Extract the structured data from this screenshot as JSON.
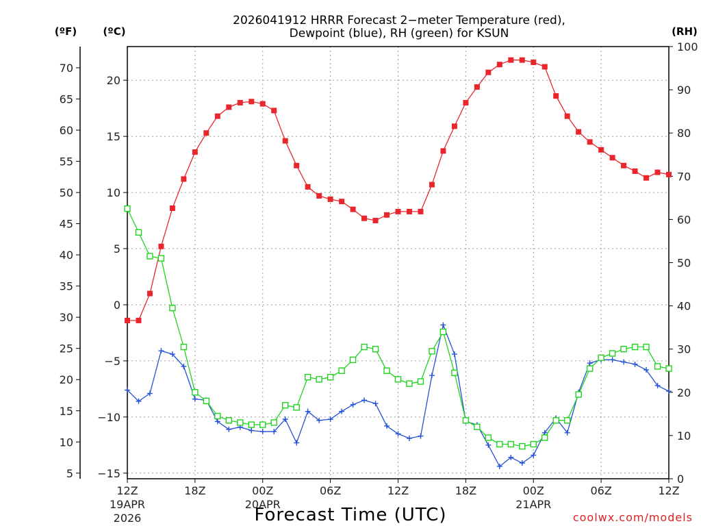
{
  "chart_data": {
    "type": "line",
    "title_line1": "2026041912 HRRR Forecast 2−meter Temperature (red),",
    "title_line2": "Dewpoint (blue), RH (green) for KSUN",
    "xlabel": "Forecast Time (UTC)",
    "credit": "coolwx.com/models",
    "unit_f": "(ºF)",
    "unit_c": "(ºC)",
    "unit_rh": "(RH)",
    "x": [
      0,
      1,
      2,
      3,
      4,
      5,
      6,
      7,
      8,
      9,
      10,
      11,
      12,
      13,
      14,
      15,
      16,
      17,
      18,
      19,
      20,
      21,
      22,
      23,
      24,
      25,
      26,
      27,
      28,
      29,
      30,
      31,
      32,
      33,
      34,
      35,
      36,
      37,
      38,
      39,
      40,
      41,
      42,
      43,
      44,
      45,
      46,
      47,
      48
    ],
    "xlim": [
      0,
      48
    ],
    "x_ticks": [
      {
        "x": 0,
        "label": "12Z",
        "sub1": "19APR",
        "sub2": "2026"
      },
      {
        "x": 6,
        "label": "18Z",
        "sub1": "",
        "sub2": ""
      },
      {
        "x": 12,
        "label": "00Z",
        "sub1": "20APR",
        "sub2": ""
      },
      {
        "x": 18,
        "label": "06Z",
        "sub1": "",
        "sub2": ""
      },
      {
        "x": 24,
        "label": "12Z",
        "sub1": "",
        "sub2": ""
      },
      {
        "x": 30,
        "label": "18Z",
        "sub1": "",
        "sub2": ""
      },
      {
        "x": 36,
        "label": "00Z",
        "sub1": "21APR",
        "sub2": ""
      },
      {
        "x": 42,
        "label": "06Z",
        "sub1": "",
        "sub2": ""
      },
      {
        "x": 48,
        "label": "12Z",
        "sub1": "",
        "sub2": ""
      }
    ],
    "ylim_c": [
      -15.5,
      23
    ],
    "y_ticks_c": [
      -15,
      -10,
      -5,
      0,
      5,
      10,
      15,
      20
    ],
    "y_ticks_f": [
      5,
      10,
      15,
      20,
      25,
      30,
      35,
      40,
      45,
      50,
      55,
      60,
      65,
      70
    ],
    "ylim_rh": [
      0,
      100
    ],
    "y_ticks_rh": [
      0,
      10,
      20,
      30,
      40,
      50,
      60,
      70,
      80,
      90,
      100
    ],
    "series": [
      {
        "name": "Temperature",
        "axis": "c",
        "color": "#e8262c",
        "marker": "filled-square",
        "values": [
          -1.4,
          -1.4,
          1.0,
          5.2,
          8.6,
          11.2,
          13.6,
          15.3,
          16.8,
          17.6,
          18.0,
          18.1,
          17.9,
          17.3,
          14.6,
          12.4,
          10.5,
          9.7,
          9.4,
          9.2,
          8.5,
          7.7,
          7.5,
          8.0,
          8.3,
          8.3,
          8.3,
          10.7,
          13.7,
          15.9,
          18.0,
          19.4,
          20.7,
          21.4,
          21.8,
          21.8,
          21.6,
          21.2,
          18.6,
          16.8,
          15.4,
          14.5,
          13.8,
          13.1,
          12.4,
          11.9,
          11.3,
          11.8,
          11.6
        ]
      },
      {
        "name": "Dewpoint",
        "axis": "c",
        "color": "#2450d8",
        "marker": "plus",
        "values": [
          -7.6,
          -8.6,
          -7.9,
          -4.1,
          -4.4,
          -5.5,
          -8.4,
          -8.5,
          -10.4,
          -11.1,
          -10.9,
          -11.2,
          -11.3,
          -11.3,
          -10.2,
          -12.3,
          -9.5,
          -10.3,
          -10.2,
          -9.5,
          -8.9,
          -8.5,
          -8.8,
          -10.8,
          -11.5,
          -11.9,
          -11.7,
          -6.3,
          -1.8,
          -4.4,
          -10.4,
          -10.7,
          -12.5,
          -14.4,
          -13.6,
          -14.1,
          -13.4,
          -11.4,
          -10.1,
          -11.4,
          -7.8,
          -5.2,
          -4.9,
          -4.9,
          -5.1,
          -5.3,
          -5.8,
          -7.2,
          -7.7
        ]
      },
      {
        "name": "RH",
        "axis": "rh",
        "color": "#1fd41f",
        "marker": "open-square",
        "values": [
          62.5,
          57,
          51.5,
          51,
          39.5,
          30.5,
          20,
          18,
          14.5,
          13.5,
          13,
          12.5,
          12.5,
          13,
          17,
          16.5,
          23.5,
          23,
          23.5,
          25,
          27.5,
          30.5,
          30,
          25,
          23,
          22,
          22.5,
          29.5,
          34,
          24.5,
          13.5,
          12,
          9.5,
          8,
          8,
          7.5,
          8,
          9.5,
          13.5,
          13.5,
          19.5,
          25.5,
          28,
          29,
          30,
          30.5,
          30.5,
          26,
          25.5
        ]
      }
    ]
  }
}
